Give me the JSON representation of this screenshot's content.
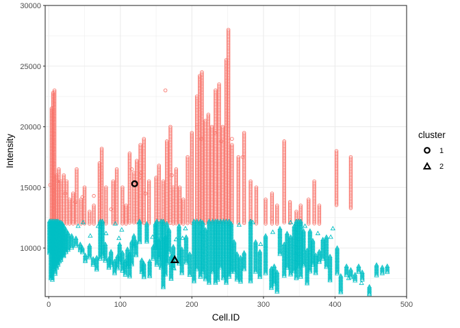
{
  "chart_data": {
    "type": "scatter",
    "xlabel": "Cell.ID",
    "ylabel": "Intensity",
    "xlim": [
      -5,
      500
    ],
    "ylim": [
      6000,
      30000
    ],
    "x_ticks": [
      0,
      100,
      200,
      300,
      400,
      500
    ],
    "x_tick_labels": [
      "0",
      "100",
      "200",
      "300",
      "400",
      "500"
    ],
    "y_ticks": [
      10000,
      15000,
      20000,
      25000,
      30000
    ],
    "y_tick_labels": [
      "10000",
      "15000",
      "20000",
      "25000",
      "30000"
    ],
    "grid": true,
    "legend": {
      "title": "cluster",
      "position": "right"
    },
    "series": [
      {
        "name": "1",
        "marker": "circle-open",
        "color": "#F8766D",
        "columns": [
          [
            4,
            12000,
            21500
          ],
          [
            6,
            12000,
            22800
          ],
          [
            8,
            12000,
            23000
          ],
          [
            11,
            12000,
            16000
          ],
          [
            14,
            12000,
            16500
          ],
          [
            17,
            12000,
            15500
          ],
          [
            21,
            12000,
            16000
          ],
          [
            25,
            12000,
            15500
          ],
          [
            29,
            12000,
            14000
          ],
          [
            34,
            12000,
            14500
          ],
          [
            39,
            12000,
            16500
          ],
          [
            45,
            12000,
            14000
          ],
          [
            50,
            12000,
            15000
          ],
          [
            57,
            12000,
            13000
          ],
          [
            63,
            12000,
            13500
          ],
          [
            71,
            12000,
            17000
          ],
          [
            74,
            12000,
            18200
          ],
          [
            80,
            12000,
            15000
          ],
          [
            90,
            12000,
            15500
          ],
          [
            95,
            12000,
            16500
          ],
          [
            103,
            12000,
            15000
          ],
          [
            108,
            12000,
            13500
          ],
          [
            113,
            12000,
            17800
          ],
          [
            119,
            12000,
            16200
          ],
          [
            123,
            12000,
            17200
          ],
          [
            128,
            12000,
            18500
          ],
          [
            133,
            12000,
            19000
          ],
          [
            140,
            12000,
            15500
          ],
          [
            150,
            12000,
            15800
          ],
          [
            154,
            12000,
            16800
          ],
          [
            160,
            12000,
            15500
          ],
          [
            165,
            12000,
            18800
          ],
          [
            170,
            12000,
            20000
          ],
          [
            174,
            12000,
            15000
          ],
          [
            178,
            12000,
            16500
          ],
          [
            183,
            12000,
            15000
          ],
          [
            188,
            12000,
            14000
          ],
          [
            194,
            12000,
            17500
          ],
          [
            200,
            12000,
            19500
          ],
          [
            207,
            12000,
            22500
          ],
          [
            211,
            12000,
            24200
          ],
          [
            214,
            12000,
            24500
          ],
          [
            219,
            12000,
            20500
          ],
          [
            223,
            12000,
            21000
          ],
          [
            228,
            12000,
            20000
          ],
          [
            233,
            12000,
            23000
          ],
          [
            238,
            12000,
            23500
          ],
          [
            243,
            12000,
            20000
          ],
          [
            248,
            12000,
            25500
          ],
          [
            251,
            12000,
            28000
          ],
          [
            256,
            12000,
            18500
          ],
          [
            265,
            12000,
            17500
          ],
          [
            273,
            12000,
            19500
          ],
          [
            282,
            12000,
            15500
          ],
          [
            290,
            12000,
            15000
          ],
          [
            303,
            12000,
            14000
          ],
          [
            312,
            12000,
            14500
          ],
          [
            319,
            12000,
            13500
          ],
          [
            329,
            12000,
            18800
          ],
          [
            337,
            12000,
            13800
          ],
          [
            346,
            12000,
            13000
          ],
          [
            352,
            12000,
            13500
          ],
          [
            363,
            12000,
            14000
          ],
          [
            371,
            12000,
            15500
          ],
          [
            378,
            12000,
            13500
          ],
          [
            402,
            13500,
            18000
          ],
          [
            422,
            13200,
            17500
          ]
        ],
        "scatter": [
          [
            2,
            15200
          ],
          [
            6,
            14800
          ],
          [
            12,
            15500
          ],
          [
            23,
            14500
          ],
          [
            37,
            13800
          ],
          [
            47,
            14200
          ],
          [
            63,
            14300
          ],
          [
            87,
            13200
          ],
          [
            116,
            16500
          ],
          [
            127,
            15800
          ],
          [
            129,
            16200
          ],
          [
            135,
            14500
          ],
          [
            163,
            23000
          ],
          [
            172,
            16000
          ],
          [
            207,
            20000
          ],
          [
            213,
            19000
          ],
          [
            232,
            19500
          ],
          [
            241,
            18800
          ],
          [
            256,
            19000
          ],
          [
            271,
            17500
          ],
          [
            282,
            12200
          ],
          [
            312,
            12500
          ],
          [
            352,
            12400
          ]
        ],
        "highlight": [
          120,
          15300
        ]
      },
      {
        "name": "2",
        "marker": "triangle-open",
        "color": "#00BFC4",
        "columns": [
          [
            1,
            9500,
            12200
          ],
          [
            3,
            7400,
            12200
          ],
          [
            5,
            7300,
            12200
          ],
          [
            7,
            8200,
            12200
          ],
          [
            9,
            7800,
            12200
          ],
          [
            11,
            8300,
            12200
          ],
          [
            13,
            8600,
            12200
          ],
          [
            15,
            8800,
            12100
          ],
          [
            17,
            9000,
            12100
          ],
          [
            19,
            9300,
            12000
          ],
          [
            21,
            9200,
            11800
          ],
          [
            24,
            9600,
            11500
          ],
          [
            27,
            9800,
            11200
          ],
          [
            32,
            10000,
            11000
          ],
          [
            38,
            10100,
            10800
          ],
          [
            44,
            9800,
            10300
          ],
          [
            47,
            9600,
            10000
          ],
          [
            51,
            8800,
            9400
          ],
          [
            57,
            9200,
            10200
          ],
          [
            62,
            8500,
            9100
          ],
          [
            67,
            8200,
            9200
          ],
          [
            72,
            9000,
            12200
          ],
          [
            75,
            9300,
            12200
          ],
          [
            79,
            8900,
            10300
          ],
          [
            84,
            8300,
            9100
          ],
          [
            87,
            8500,
            9700
          ],
          [
            92,
            7900,
            8900
          ],
          [
            96,
            8200,
            9300
          ],
          [
            99,
            8800,
            10300
          ],
          [
            103,
            8100,
            9600
          ],
          [
            107,
            7700,
            8900
          ],
          [
            110,
            8300,
            9900
          ],
          [
            113,
            7600,
            9500
          ],
          [
            116,
            8600,
            10500
          ],
          [
            119,
            9900,
            11000
          ],
          [
            122,
            9300,
            10500
          ],
          [
            127,
            10400,
            12200
          ],
          [
            130,
            8000,
            9000
          ],
          [
            133,
            7500,
            8700
          ],
          [
            137,
            10500,
            12000
          ],
          [
            141,
            7600,
            8900
          ],
          [
            146,
            9000,
            10100
          ],
          [
            149,
            10000,
            12000
          ],
          [
            151,
            8600,
            12200
          ],
          [
            154,
            9100,
            10600
          ],
          [
            157,
            8300,
            12200
          ],
          [
            160,
            6700,
            12200
          ],
          [
            163,
            7800,
            10900
          ],
          [
            165,
            8700,
            12000
          ],
          [
            168,
            9600,
            11500
          ],
          [
            171,
            7400,
            9300
          ],
          [
            174,
            8300,
            10100
          ],
          [
            182,
            8600,
            11800
          ],
          [
            186,
            7900,
            9900
          ],
          [
            192,
            8700,
            10900
          ],
          [
            197,
            7700,
            9500
          ],
          [
            203,
            7200,
            12200
          ],
          [
            207,
            8200,
            12200
          ],
          [
            212,
            7600,
            12200
          ],
          [
            215,
            8000,
            12100
          ],
          [
            219,
            7300,
            11500
          ],
          [
            224,
            7000,
            12200
          ],
          [
            229,
            7900,
            12200
          ],
          [
            233,
            7100,
            12200
          ],
          [
            236,
            7300,
            12200
          ],
          [
            240,
            8300,
            12200
          ],
          [
            244,
            7400,
            12200
          ],
          [
            248,
            7100,
            12200
          ],
          [
            252,
            7500,
            12200
          ],
          [
            255,
            8000,
            12000
          ],
          [
            259,
            7900,
            10500
          ],
          [
            263,
            7300,
            9500
          ],
          [
            268,
            7200,
            9200
          ],
          [
            273,
            8200,
            9600
          ],
          [
            282,
            7200,
            12200
          ],
          [
            289,
            7900,
            10500
          ],
          [
            295,
            7500,
            9700
          ],
          [
            303,
            7900,
            11000
          ],
          [
            311,
            6600,
            8300
          ],
          [
            315,
            7000,
            8500
          ],
          [
            319,
            6300,
            8000
          ],
          [
            323,
            9400,
            11600
          ],
          [
            329,
            7600,
            10300
          ],
          [
            333,
            8300,
            11200
          ],
          [
            338,
            7700,
            10900
          ],
          [
            343,
            8000,
            11800
          ],
          [
            346,
            7400,
            12200
          ],
          [
            349,
            8300,
            12200
          ],
          [
            352,
            7500,
            12200
          ],
          [
            356,
            8500,
            11400
          ],
          [
            361,
            7000,
            9800
          ],
          [
            365,
            8000,
            11400
          ],
          [
            369,
            8500,
            10600
          ],
          [
            373,
            7900,
            9400
          ],
          [
            378,
            8800,
            9700
          ],
          [
            383,
            9000,
            10700
          ],
          [
            388,
            8400,
            10900
          ],
          [
            393,
            7300,
            9300
          ],
          [
            403,
            7800,
            10000
          ],
          [
            408,
            6300,
            7700
          ],
          [
            416,
            7700,
            8500
          ],
          [
            422,
            7500,
            8200
          ],
          [
            428,
            7300,
            7800
          ],
          [
            433,
            7900,
            8500
          ],
          [
            438,
            7300,
            8000
          ],
          [
            448,
            6100,
            6800
          ],
          [
            458,
            7700,
            8600
          ],
          [
            466,
            7900,
            8400
          ],
          [
            473,
            8000,
            8500
          ]
        ],
        "scatter": [
          [
            10,
            11600
          ],
          [
            41,
            11800
          ],
          [
            48,
            12100
          ],
          [
            58,
            11000
          ],
          [
            69,
            11800
          ],
          [
            80,
            11200
          ],
          [
            93,
            12000
          ],
          [
            98,
            10800
          ],
          [
            102,
            11500
          ],
          [
            126,
            12100
          ],
          [
            145,
            10900
          ],
          [
            175,
            8300
          ],
          [
            178,
            10700
          ],
          [
            187,
            10800
          ],
          [
            191,
            11600
          ],
          [
            212,
            11200
          ],
          [
            266,
            11900
          ],
          [
            285,
            12100
          ],
          [
            296,
            10300
          ],
          [
            313,
            11300
          ],
          [
            338,
            12100
          ],
          [
            358,
            11800
          ],
          [
            376,
            11200
          ],
          [
            394,
            10900
          ],
          [
            397,
            11600
          ],
          [
            437,
            7100
          ],
          [
            419,
            7500
          ]
        ],
        "highlight": [
          176,
          9000
        ]
      }
    ]
  }
}
